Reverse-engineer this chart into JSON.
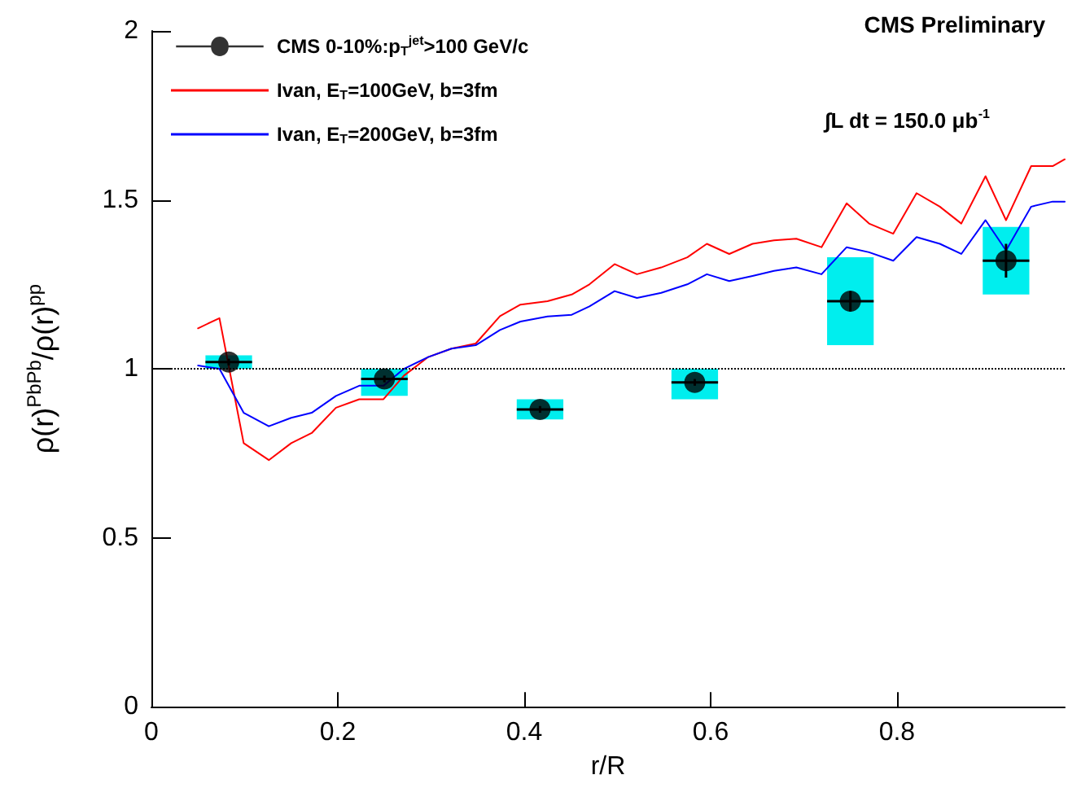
{
  "chart_data": {
    "type": "scatter",
    "xlabel": "r/R",
    "ylabel": "ρ(r)$^{PbPb}$/ρ(r)$^{pp}$",
    "xlim": [
      0,
      0.98
    ],
    "xticks": [
      0,
      0.2,
      0.4,
      0.6,
      0.8
    ],
    "ylim": [
      0,
      2
    ],
    "yticks": [
      0,
      0.5,
      1,
      1.5,
      2
    ],
    "legend": "top left",
    "grid": false,
    "annotations": [
      "CMS Preliminary",
      "∫L dt = 150.0 μb$^{-1}$"
    ],
    "ref_lines": [
      {
        "axis": "y",
        "value": 1,
        "label": null,
        "color": "#000000",
        "line_style": "dotted"
      }
    ],
    "series": [
      {
        "type": "bar",
        "color": "#00eeee",
        "x": [
          0.083,
          0.25,
          0.417,
          0.583,
          0.75,
          0.917
        ],
        "base": [
          1.0,
          0.92,
          0.85,
          0.91,
          1.07,
          1.22
        ],
        "values": [
          0.04,
          0.08,
          0.06,
          0.09,
          0.26,
          0.2
        ],
        "xerrors": [
          0.025,
          0.025,
          0.025,
          0.025,
          0.025,
          0.025
        ]
      },
      {
        "type": "line",
        "name": "Ivan, E$_{T}$=100GeV, b=3fm",
        "color": "#ff0000",
        "line_style": "solid",
        "marker": "none",
        "x": [
          0.05,
          0.073,
          0.099,
          0.126,
          0.15,
          0.172,
          0.198,
          0.223,
          0.249,
          0.271,
          0.297,
          0.322,
          0.348,
          0.374,
          0.396,
          0.425,
          0.451,
          0.47,
          0.497,
          0.521,
          0.547,
          0.575,
          0.596,
          0.62,
          0.645,
          0.668,
          0.692,
          0.719,
          0.746,
          0.77,
          0.796,
          0.821,
          0.846,
          0.869,
          0.895,
          0.917,
          0.944,
          0.967,
          0.98
        ],
        "values": [
          1.12,
          1.15,
          0.78,
          0.73,
          0.78,
          0.81,
          0.885,
          0.91,
          0.91,
          0.98,
          1.035,
          1.06,
          1.075,
          1.156,
          1.19,
          1.2,
          1.22,
          1.25,
          1.31,
          1.28,
          1.3,
          1.33,
          1.37,
          1.34,
          1.37,
          1.38,
          1.385,
          1.36,
          1.49,
          1.43,
          1.4,
          1.52,
          1.48,
          1.43,
          1.57,
          1.44,
          1.6,
          1.6,
          1.62
        ]
      },
      {
        "type": "line",
        "name": "Ivan, E$_{T}$=200GeV, b=3fm",
        "color": "#0000ff",
        "line_style": "solid",
        "marker": "none",
        "x": [
          0.05,
          0.073,
          0.099,
          0.126,
          0.15,
          0.172,
          0.198,
          0.223,
          0.249,
          0.271,
          0.297,
          0.322,
          0.348,
          0.374,
          0.396,
          0.425,
          0.451,
          0.47,
          0.497,
          0.521,
          0.547,
          0.575,
          0.596,
          0.62,
          0.645,
          0.668,
          0.692,
          0.719,
          0.746,
          0.77,
          0.796,
          0.821,
          0.846,
          0.869,
          0.895,
          0.917,
          0.944,
          0.967,
          0.98
        ],
        "values": [
          1.01,
          1.0,
          0.87,
          0.83,
          0.855,
          0.87,
          0.92,
          0.95,
          0.95,
          1.0,
          1.035,
          1.06,
          1.07,
          1.115,
          1.14,
          1.155,
          1.16,
          1.185,
          1.23,
          1.21,
          1.225,
          1.25,
          1.28,
          1.26,
          1.275,
          1.29,
          1.3,
          1.28,
          1.36,
          1.345,
          1.32,
          1.39,
          1.37,
          1.34,
          1.44,
          1.35,
          1.48,
          1.495,
          1.495
        ]
      },
      {
        "name": "CMS 0-10%:p$_{T}$$^{jet}$>100 GeV/c",
        "color": "#000000",
        "marker": "circle",
        "x": [
          0.083,
          0.25,
          0.417,
          0.583,
          0.75,
          0.917
        ],
        "values": [
          1.02,
          0.97,
          0.88,
          0.96,
          1.2,
          1.32
        ],
        "errors": [
          0.01,
          0.01,
          0.01,
          0.01,
          0.03,
          0.05
        ],
        "xerrors": [
          0.025,
          0.025,
          0.025,
          0.025,
          0.025,
          0.025
        ]
      }
    ]
  }
}
